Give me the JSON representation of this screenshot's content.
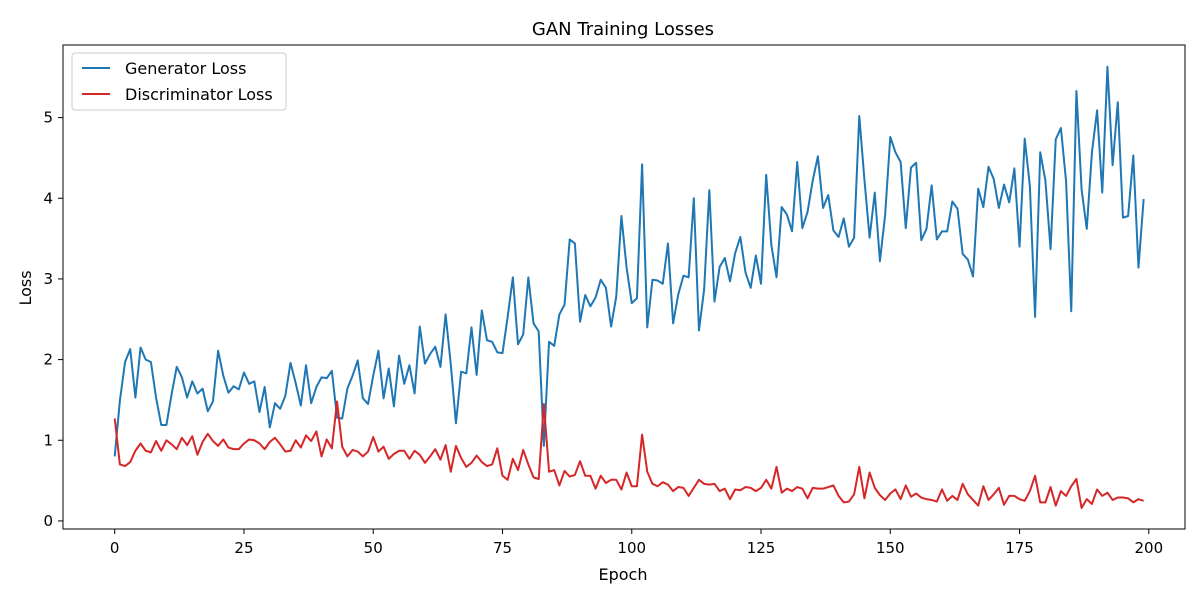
{
  "chart_data": {
    "type": "line",
    "title": "GAN Training Losses",
    "xlabel": "Epoch",
    "ylabel": "Loss",
    "xlim": [
      -10,
      207
    ],
    "ylim": [
      -0.1,
      5.9
    ],
    "xticks": [
      0,
      25,
      50,
      75,
      100,
      125,
      150,
      175,
      200
    ],
    "yticks": [
      0,
      1,
      2,
      3,
      4,
      5
    ],
    "grid": false,
    "legend_position": "top-left",
    "x": [
      0,
      1,
      2,
      3,
      4,
      5,
      6,
      7,
      8,
      9,
      10,
      11,
      12,
      13,
      14,
      15,
      16,
      17,
      18,
      19,
      20,
      21,
      22,
      23,
      24,
      25,
      26,
      27,
      28,
      29,
      30,
      31,
      32,
      33,
      34,
      35,
      36,
      37,
      38,
      39,
      40,
      41,
      42,
      43,
      44,
      45,
      46,
      47,
      48,
      49,
      50,
      51,
      52,
      53,
      54,
      55,
      56,
      57,
      58,
      59,
      60,
      61,
      62,
      63,
      64,
      65,
      66,
      67,
      68,
      69,
      70,
      71,
      72,
      73,
      74,
      75,
      76,
      77,
      78,
      79,
      80,
      81,
      82,
      83,
      84,
      85,
      86,
      87,
      88,
      89,
      90,
      91,
      92,
      93,
      94,
      95,
      96,
      97,
      98,
      99,
      100,
      101,
      102,
      103,
      104,
      105,
      106,
      107,
      108,
      109,
      110,
      111,
      112,
      113,
      114,
      115,
      116,
      117,
      118,
      119,
      120,
      121,
      122,
      123,
      124,
      125,
      126,
      127,
      128,
      129,
      130,
      131,
      132,
      133,
      134,
      135,
      136,
      137,
      138,
      139,
      140,
      141,
      142,
      143,
      144,
      145,
      146,
      147,
      148,
      149,
      150,
      151,
      152,
      153,
      154,
      155,
      156,
      157,
      158,
      159,
      160,
      161,
      162,
      163,
      164,
      165,
      166,
      167,
      168,
      169,
      170,
      171,
      172,
      173,
      174,
      175,
      176,
      177,
      178,
      179,
      180,
      181,
      182,
      183,
      184,
      185,
      186,
      187,
      188,
      189,
      190,
      191,
      192,
      193,
      194,
      195,
      196,
      197,
      198,
      199
    ],
    "series": [
      {
        "name": "Generator Loss",
        "color": "#1f77b4",
        "values": [
          0.8,
          1.49,
          1.97,
          2.13,
          1.53,
          2.15,
          2.0,
          1.97,
          1.53,
          1.19,
          1.19,
          1.57,
          1.91,
          1.78,
          1.53,
          1.73,
          1.58,
          1.64,
          1.36,
          1.48,
          2.11,
          1.8,
          1.59,
          1.67,
          1.63,
          1.84,
          1.7,
          1.73,
          1.35,
          1.66,
          1.16,
          1.46,
          1.39,
          1.55,
          1.96,
          1.71,
          1.43,
          1.93,
          1.46,
          1.66,
          1.78,
          1.77,
          1.86,
          1.28,
          1.27,
          1.64,
          1.8,
          1.99,
          1.52,
          1.45,
          1.8,
          2.11,
          1.52,
          1.89,
          1.42,
          2.05,
          1.7,
          1.93,
          1.58,
          2.41,
          1.95,
          2.07,
          2.16,
          1.91,
          2.56,
          1.94,
          1.21,
          1.85,
          1.83,
          2.4,
          1.81,
          2.61,
          2.24,
          2.22,
          2.09,
          2.08,
          2.53,
          3.02,
          2.19,
          2.31,
          3.02,
          2.45,
          2.35,
          0.93,
          2.22,
          2.17,
          2.56,
          2.68,
          3.49,
          3.44,
          2.47,
          2.8,
          2.66,
          2.77,
          2.99,
          2.89,
          2.41,
          2.78,
          3.78,
          3.14,
          2.7,
          2.76,
          4.42,
          2.4,
          2.99,
          2.98,
          2.94,
          3.44,
          2.45,
          2.81,
          3.04,
          3.02,
          4.0,
          2.36,
          2.87,
          4.1,
          2.72,
          3.15,
          3.26,
          2.97,
          3.32,
          3.52,
          3.08,
          2.89,
          3.29,
          2.94,
          4.29,
          3.42,
          3.02,
          3.89,
          3.8,
          3.59,
          4.45,
          3.63,
          3.83,
          4.22,
          4.52,
          3.88,
          4.04,
          3.6,
          3.52,
          3.75,
          3.4,
          3.51,
          5.02,
          4.23,
          3.51,
          4.07,
          3.22,
          3.79,
          4.76,
          4.57,
          4.45,
          3.63,
          4.38,
          4.44,
          3.48,
          3.62,
          4.16,
          3.49,
          3.59,
          3.59,
          3.96,
          3.87,
          3.31,
          3.24,
          3.03,
          4.12,
          3.89,
          4.39,
          4.24,
          3.88,
          4.17,
          3.95,
          4.37,
          3.4,
          4.74,
          4.15,
          2.53,
          4.57,
          4.22,
          3.37,
          4.73,
          4.87,
          4.21,
          2.6,
          5.33,
          4.11,
          3.62,
          4.57,
          5.09,
          4.07,
          5.63,
          4.41,
          5.19,
          3.76,
          3.78,
          4.53,
          3.14,
          3.99
        ]
      },
      {
        "name": "Discriminator Loss",
        "color": "#d62728",
        "values": [
          1.27,
          0.7,
          0.68,
          0.73,
          0.87,
          0.96,
          0.87,
          0.85,
          0.99,
          0.87,
          1.0,
          0.95,
          0.89,
          1.03,
          0.94,
          1.05,
          0.82,
          0.98,
          1.08,
          0.99,
          0.93,
          1.01,
          0.91,
          0.89,
          0.89,
          0.96,
          1.01,
          1.0,
          0.96,
          0.89,
          0.98,
          1.03,
          0.95,
          0.86,
          0.87,
          1.0,
          0.91,
          1.06,
          0.99,
          1.11,
          0.8,
          1.01,
          0.9,
          1.48,
          0.92,
          0.8,
          0.88,
          0.86,
          0.8,
          0.86,
          1.04,
          0.86,
          0.92,
          0.77,
          0.83,
          0.87,
          0.87,
          0.77,
          0.87,
          0.82,
          0.72,
          0.8,
          0.89,
          0.76,
          0.94,
          0.61,
          0.93,
          0.78,
          0.67,
          0.72,
          0.81,
          0.73,
          0.68,
          0.7,
          0.9,
          0.56,
          0.51,
          0.77,
          0.63,
          0.88,
          0.7,
          0.54,
          0.52,
          1.45,
          0.61,
          0.63,
          0.44,
          0.62,
          0.55,
          0.57,
          0.74,
          0.56,
          0.56,
          0.4,
          0.56,
          0.47,
          0.51,
          0.51,
          0.39,
          0.6,
          0.43,
          0.43,
          1.07,
          0.61,
          0.46,
          0.43,
          0.48,
          0.45,
          0.37,
          0.42,
          0.41,
          0.31,
          0.41,
          0.51,
          0.46,
          0.45,
          0.46,
          0.37,
          0.4,
          0.27,
          0.39,
          0.38,
          0.42,
          0.41,
          0.37,
          0.41,
          0.51,
          0.4,
          0.67,
          0.35,
          0.4,
          0.37,
          0.42,
          0.4,
          0.28,
          0.41,
          0.4,
          0.4,
          0.42,
          0.44,
          0.31,
          0.23,
          0.24,
          0.33,
          0.67,
          0.28,
          0.6,
          0.41,
          0.32,
          0.26,
          0.34,
          0.39,
          0.27,
          0.44,
          0.3,
          0.34,
          0.29,
          0.27,
          0.26,
          0.24,
          0.39,
          0.25,
          0.31,
          0.26,
          0.46,
          0.33,
          0.26,
          0.19,
          0.43,
          0.26,
          0.33,
          0.41,
          0.2,
          0.31,
          0.31,
          0.27,
          0.25,
          0.37,
          0.56,
          0.23,
          0.23,
          0.42,
          0.19,
          0.37,
          0.31,
          0.43,
          0.52,
          0.16,
          0.27,
          0.21,
          0.39,
          0.31,
          0.35,
          0.26,
          0.29,
          0.29,
          0.28,
          0.23,
          0.27,
          0.25
        ]
      }
    ]
  }
}
